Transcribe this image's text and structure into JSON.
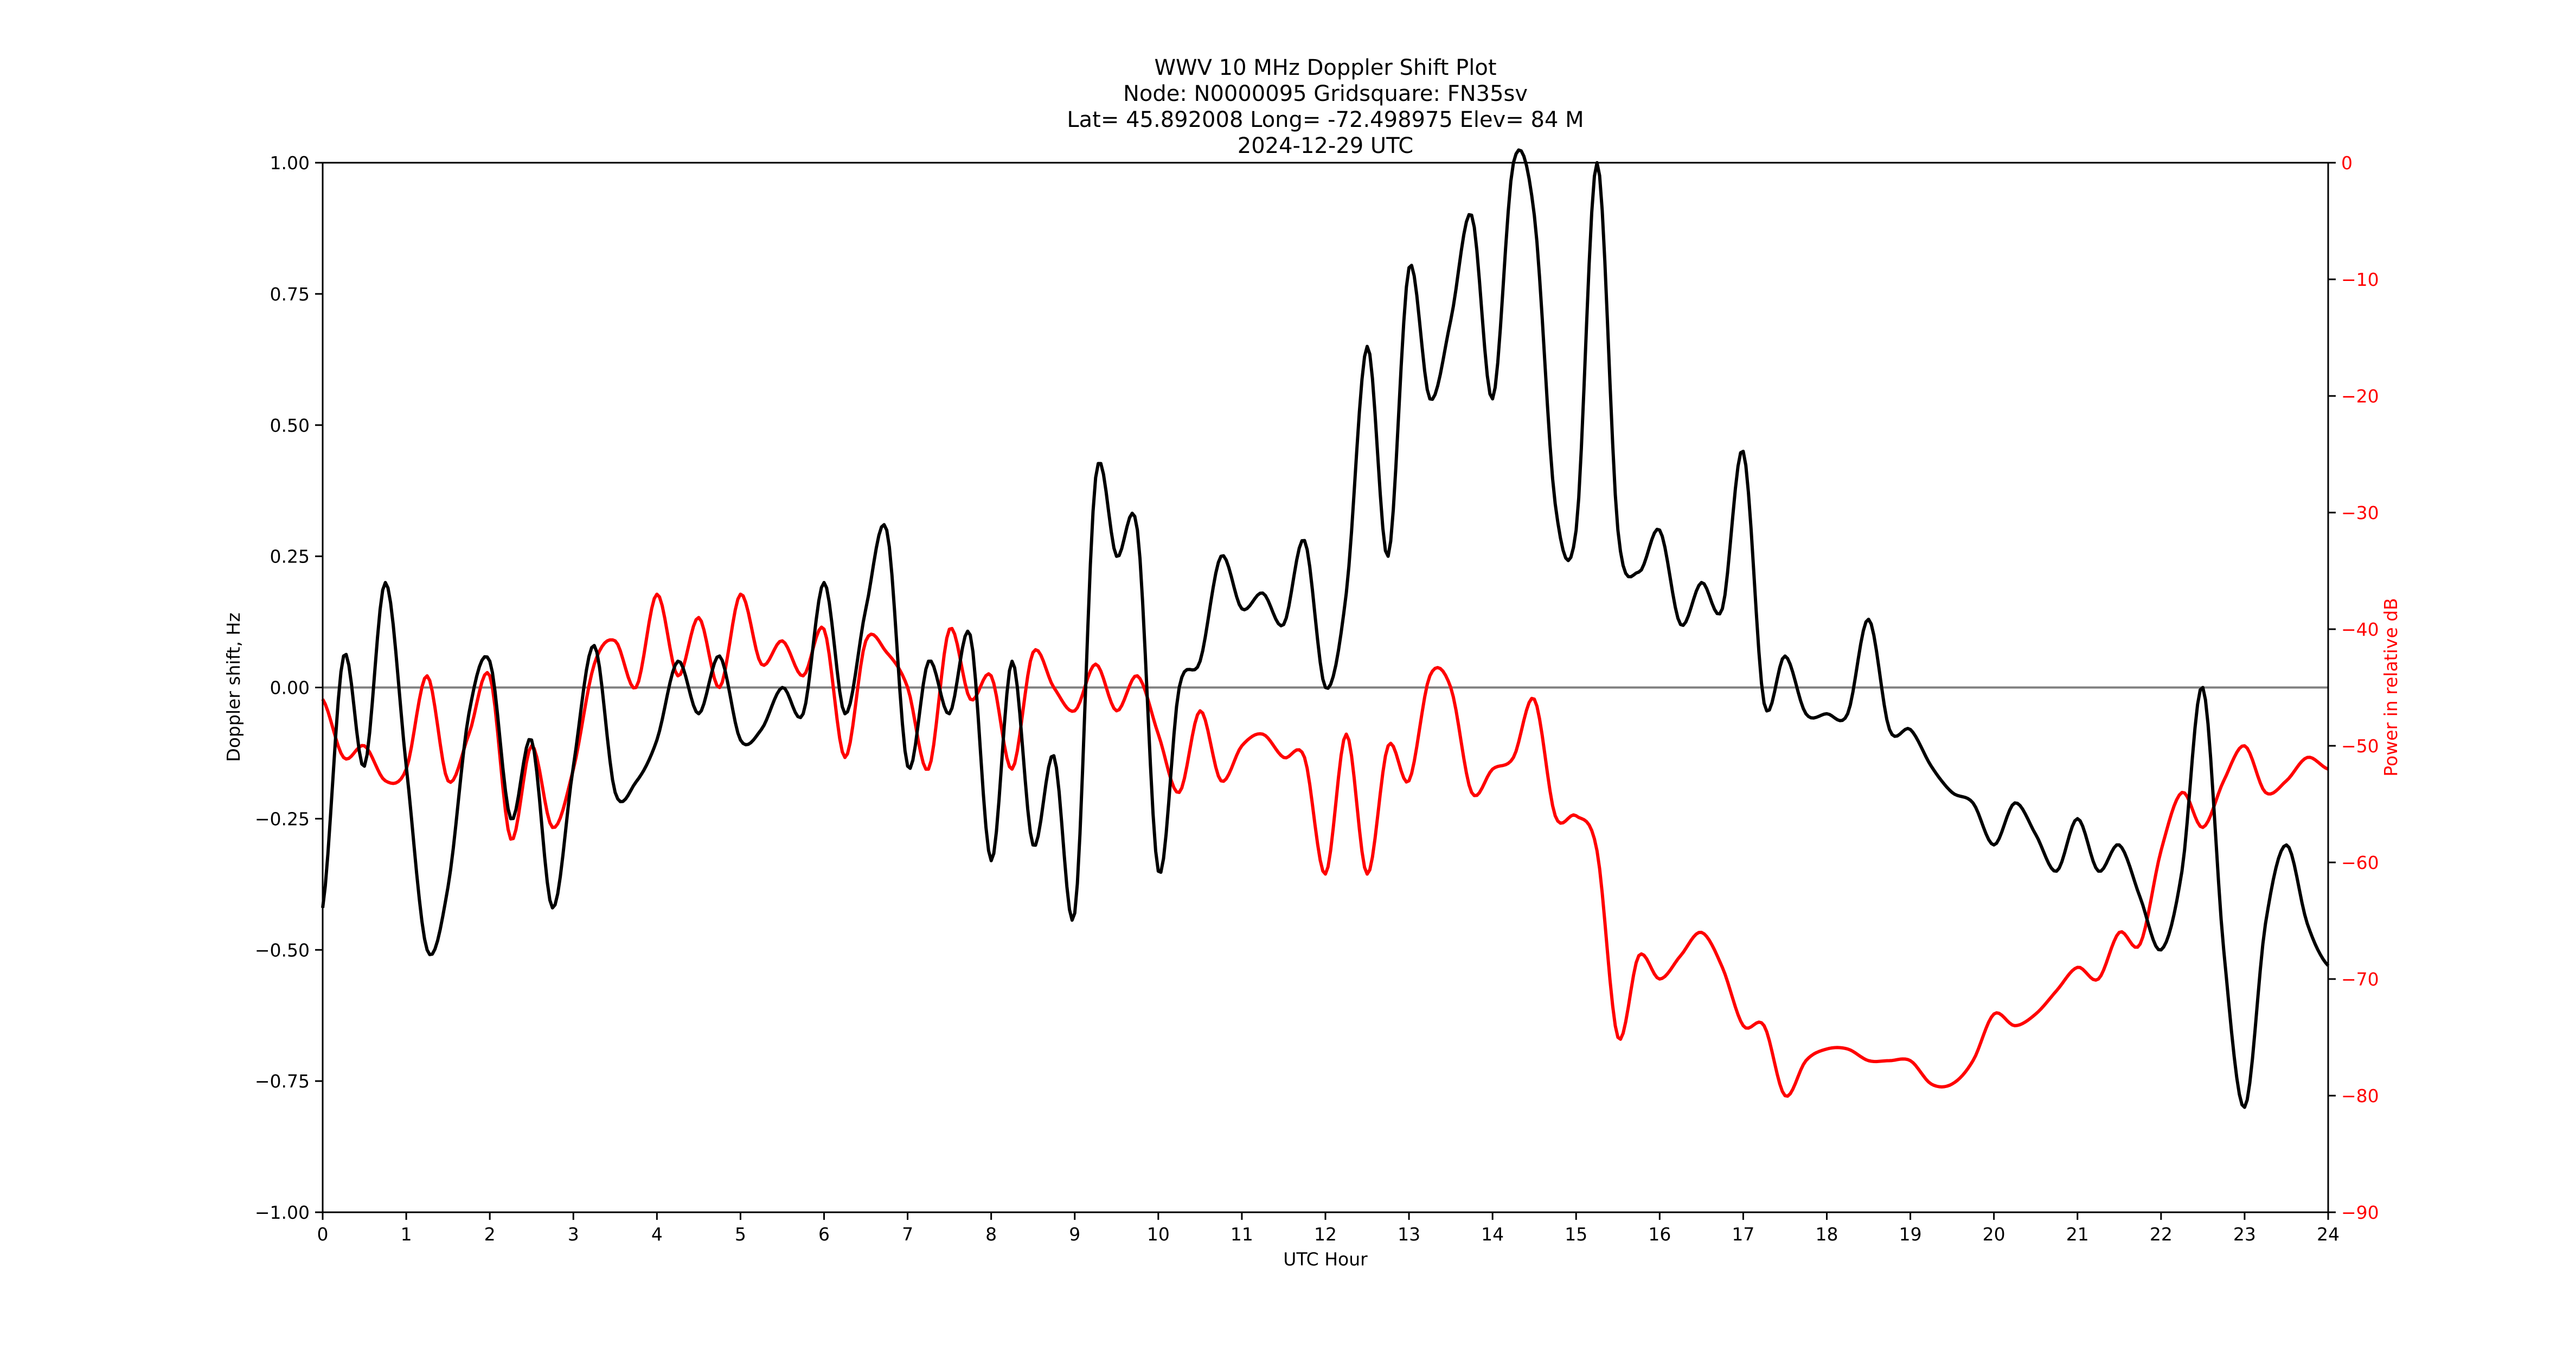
{
  "title": {
    "line1": "WWV 10 MHz Doppler Shift Plot",
    "line2": "Node:  N0000095     Gridsquare:  FN35sv",
    "line3": "Lat= 45.892008    Long= -72.498975    Elev= 84 M",
    "line4": "2024-12-29  UTC"
  },
  "axes": {
    "xlabel": "UTC Hour",
    "ylabel_left": "Doppler shift, Hz",
    "ylabel_right": "Power in relative dB",
    "x_ticks": [
      "0",
      "1",
      "2",
      "3",
      "4",
      "5",
      "6",
      "7",
      "8",
      "9",
      "10",
      "11",
      "12",
      "13",
      "14",
      "15",
      "16",
      "17",
      "18",
      "19",
      "20",
      "21",
      "22",
      "23",
      "24"
    ],
    "y_left_ticks": [
      "1.00",
      "0.75",
      "0.50",
      "0.25",
      "0.00",
      "−0.25",
      "−0.50",
      "−0.75",
      "−1.00"
    ],
    "y_right_ticks": [
      "0",
      "−10",
      "−20",
      "−30",
      "−40",
      "−50",
      "−60",
      "−70",
      "−80",
      "−90"
    ]
  },
  "colors": {
    "doppler": "#000000",
    "power": "#ff0000",
    "zero_line": "#808080"
  },
  "chart_data": {
    "type": "line",
    "title": "WWV 10 MHz Doppler Shift Plot",
    "subtitle": "Node: N0000095  Gridsquare: FN35sv  Lat= 45.892008  Long= -72.498975  Elev= 84 M  2024-12-29 UTC",
    "xlabel": "UTC Hour",
    "ylabel": "Doppler shift, Hz",
    "y2label": "Power in relative dB",
    "xlim": [
      0,
      24
    ],
    "ylim": [
      -1.0,
      1.0
    ],
    "y2lim": [
      -90,
      0
    ],
    "grid": false,
    "legend": null,
    "annotations": [
      "horizontal reference line at 0.00 Hz (gray)"
    ],
    "x": [
      0,
      0.25,
      0.5,
      0.75,
      1,
      1.25,
      1.5,
      1.75,
      2,
      2.25,
      2.5,
      2.75,
      3,
      3.25,
      3.5,
      3.75,
      4,
      4.25,
      4.5,
      4.75,
      5,
      5.25,
      5.5,
      5.75,
      6,
      6.25,
      6.5,
      6.75,
      7,
      7.25,
      7.5,
      7.75,
      8,
      8.25,
      8.5,
      8.75,
      9,
      9.25,
      9.5,
      9.75,
      10,
      10.25,
      10.5,
      10.75,
      11,
      11.25,
      11.5,
      11.75,
      12,
      12.25,
      12.5,
      12.75,
      13,
      13.25,
      13.5,
      13.75,
      14,
      14.25,
      14.5,
      14.75,
      15,
      15.25,
      15.5,
      15.75,
      16,
      16.25,
      16.5,
      16.75,
      17,
      17.25,
      17.5,
      17.75,
      18,
      18.25,
      18.5,
      18.75,
      19,
      19.25,
      19.5,
      19.75,
      20,
      20.25,
      20.5,
      20.75,
      21,
      21.25,
      21.5,
      21.75,
      22,
      22.25,
      22.5,
      22.75,
      23,
      23.25,
      23.5,
      23.75,
      24
    ],
    "series": [
      {
        "name": "Doppler shift (Hz)",
        "axis": "left",
        "color": "#000000",
        "values": [
          -0.42,
          0.06,
          -0.15,
          0.2,
          -0.15,
          -0.5,
          -0.38,
          -0.05,
          0.05,
          -0.25,
          -0.1,
          -0.42,
          -0.15,
          0.08,
          -0.2,
          -0.18,
          -0.1,
          0.05,
          -0.05,
          0.06,
          -0.1,
          -0.08,
          0.0,
          -0.05,
          0.2,
          -0.05,
          0.15,
          0.3,
          -0.15,
          0.05,
          -0.05,
          0.1,
          -0.33,
          0.05,
          -0.3,
          -0.13,
          -0.43,
          0.4,
          0.25,
          0.3,
          -0.35,
          0.0,
          0.05,
          0.25,
          0.15,
          0.18,
          0.12,
          0.28,
          0.0,
          0.18,
          0.65,
          0.25,
          0.8,
          0.55,
          0.7,
          0.9,
          0.55,
          1.0,
          0.9,
          0.35,
          0.3,
          1.0,
          0.3,
          0.22,
          0.3,
          0.12,
          0.2,
          0.15,
          0.45,
          -0.03,
          0.06,
          -0.05,
          -0.05,
          -0.05,
          0.13,
          -0.08,
          -0.08,
          -0.15,
          -0.2,
          -0.22,
          -0.3,
          -0.22,
          -0.28,
          -0.35,
          -0.25,
          -0.35,
          -0.3,
          -0.4,
          -0.5,
          -0.35,
          0.0,
          -0.5,
          -0.8,
          -0.45,
          -0.3,
          -0.45,
          -0.53
        ]
      },
      {
        "name": "Power (relative dB)",
        "axis": "right",
        "color": "#ff0000",
        "values": [
          -46,
          -51,
          -50,
          -53,
          -52,
          -44,
          -53,
          -49,
          -44,
          -58,
          -50,
          -57,
          -52,
          -43,
          -41,
          -45,
          -37,
          -44,
          -39,
          -45,
          -37,
          -43,
          -41,
          -44,
          -40,
          -51,
          -41,
          -42,
          -45,
          -52,
          -40,
          -46,
          -44,
          -52,
          -42,
          -45,
          -47,
          -43,
          -47,
          -44,
          -49,
          -54,
          -47,
          -53,
          -50,
          -49,
          -51,
          -51,
          -61,
          -49,
          -61,
          -50,
          -53,
          -44,
          -45,
          -54,
          -52,
          -51,
          -46,
          -56,
          -56,
          -59,
          -75,
          -68,
          -70,
          -68,
          -66,
          -69,
          -74,
          -74,
          -80,
          -77,
          -76,
          -76,
          -77,
          -77,
          -77,
          -79,
          -79,
          -77,
          -73,
          -74,
          -73,
          -71,
          -69,
          -70,
          -66,
          -67,
          -59,
          -54,
          -57,
          -53,
          -50,
          -54,
          -53,
          -51,
          -52
        ]
      }
    ]
  }
}
